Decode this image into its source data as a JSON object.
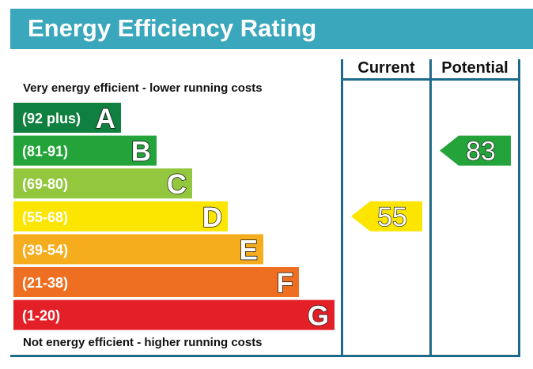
{
  "header": {
    "title": "Energy Efficiency Rating"
  },
  "columns": {
    "current": "Current",
    "potential": "Potential"
  },
  "notes": {
    "top": "Very energy efficient - lower running costs",
    "bottom": "Not energy efficient - higher running costs"
  },
  "chart_data": {
    "type": "bar",
    "title": "Energy Efficiency Rating",
    "bands": [
      {
        "range": "(92 plus)",
        "letter": "A",
        "color": "#0f8040"
      },
      {
        "range": "(81-91)",
        "letter": "B",
        "color": "#23a33a"
      },
      {
        "range": "(69-80)",
        "letter": "C",
        "color": "#93c83e"
      },
      {
        "range": "(55-68)",
        "letter": "D",
        "color": "#fce600"
      },
      {
        "range": "(39-54)",
        "letter": "E",
        "color": "#f5ad1d"
      },
      {
        "range": "(21-38)",
        "letter": "F",
        "color": "#ee6f22"
      },
      {
        "range": "(1-20)",
        "letter": "G",
        "color": "#e32028"
      }
    ],
    "current": {
      "value": 55,
      "band": "D",
      "color": "#fce600"
    },
    "potential": {
      "value": 83,
      "band": "B",
      "color": "#23a33a"
    }
  }
}
